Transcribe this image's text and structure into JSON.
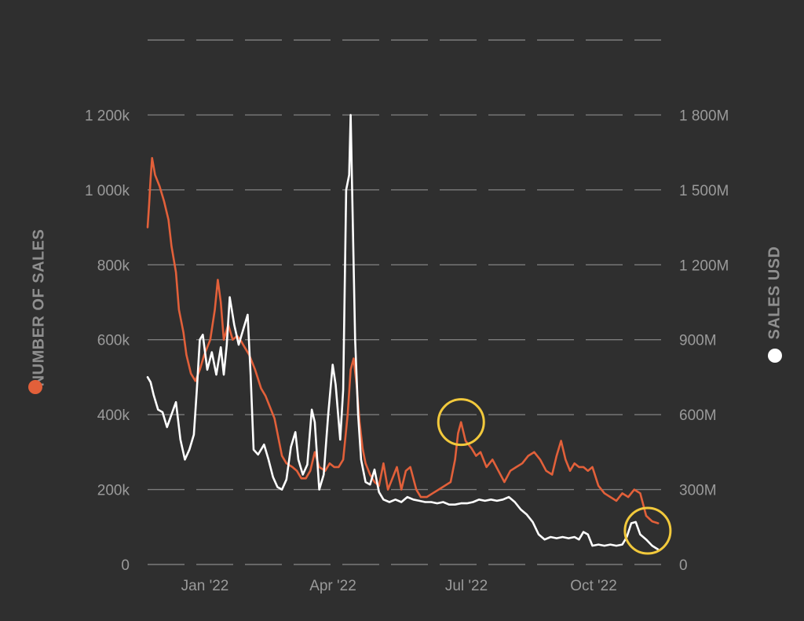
{
  "chart_data": {
    "type": "line",
    "title": "",
    "xlabel": "",
    "x_ticks": [
      "Jan '22",
      "Apr '22",
      "Jul '22",
      "Oct '22"
    ],
    "y_left": {
      "label": "NUMBER OF SALES",
      "ticks": [
        "0",
        "200k",
        "400k",
        "600k",
        "800k",
        "1 000k",
        "1 200k"
      ],
      "lim": [
        0,
        1400000
      ]
    },
    "y_right": {
      "label": "SALES USD",
      "ticks": [
        "0",
        "300M",
        "600M",
        "900M",
        "1 200M",
        "1 500M",
        "1 800M"
      ],
      "lim": [
        0,
        2100000000
      ]
    },
    "x_range": [
      "2021-12-03",
      "2022-11-12"
    ],
    "grid": true,
    "colors": {
      "number_of_sales": "#e2603a",
      "sales_usd": "#ffffff",
      "highlight": "#f2c93c",
      "background": "#2f2f2f"
    },
    "series": [
      {
        "name": "NUMBER OF SALES",
        "axis": "left",
        "points": [
          [
            "2021-12-03",
            900000
          ],
          [
            "2021-12-04",
            960000
          ],
          [
            "2021-12-05",
            1030000
          ],
          [
            "2021-12-06",
            1085000
          ],
          [
            "2021-12-08",
            1040000
          ],
          [
            "2021-12-11",
            1010000
          ],
          [
            "2021-12-14",
            970000
          ],
          [
            "2021-12-17",
            920000
          ],
          [
            "2021-12-19",
            850000
          ],
          [
            "2021-12-22",
            780000
          ],
          [
            "2021-12-24",
            680000
          ],
          [
            "2021-12-27",
            620000
          ],
          [
            "2021-12-29",
            560000
          ],
          [
            "2022-01-01",
            510000
          ],
          [
            "2022-01-04",
            490000
          ],
          [
            "2022-01-07",
            520000
          ],
          [
            "2022-01-10",
            560000
          ],
          [
            "2022-01-12",
            580000
          ],
          [
            "2022-01-14",
            600000
          ],
          [
            "2022-01-17",
            680000
          ],
          [
            "2022-01-19",
            760000
          ],
          [
            "2022-01-21",
            700000
          ],
          [
            "2022-01-23",
            600000
          ],
          [
            "2022-01-26",
            640000
          ],
          [
            "2022-01-29",
            600000
          ],
          [
            "2022-02-01",
            610000
          ],
          [
            "2022-02-03",
            600000
          ],
          [
            "2022-02-06",
            580000
          ],
          [
            "2022-02-09",
            560000
          ],
          [
            "2022-02-13",
            520000
          ],
          [
            "2022-02-17",
            470000
          ],
          [
            "2022-02-20",
            450000
          ],
          [
            "2022-02-23",
            420000
          ],
          [
            "2022-02-26",
            390000
          ],
          [
            "2022-03-01",
            330000
          ],
          [
            "2022-03-03",
            290000
          ],
          [
            "2022-03-06",
            270000
          ],
          [
            "2022-03-10",
            260000
          ],
          [
            "2022-03-13",
            250000
          ],
          [
            "2022-03-16",
            230000
          ],
          [
            "2022-03-19",
            230000
          ],
          [
            "2022-03-22",
            250000
          ],
          [
            "2022-03-25",
            300000
          ],
          [
            "2022-03-28",
            260000
          ],
          [
            "2022-04-01",
            250000
          ],
          [
            "2022-04-04",
            270000
          ],
          [
            "2022-04-07",
            260000
          ],
          [
            "2022-04-10",
            260000
          ],
          [
            "2022-04-13",
            280000
          ],
          [
            "2022-04-16",
            400000
          ],
          [
            "2022-04-18",
            520000
          ],
          [
            "2022-04-20",
            550000
          ],
          [
            "2022-04-22",
            480000
          ],
          [
            "2022-04-24",
            380000
          ],
          [
            "2022-04-26",
            310000
          ],
          [
            "2022-04-28",
            270000
          ],
          [
            "2022-05-01",
            240000
          ],
          [
            "2022-05-04",
            220000
          ],
          [
            "2022-05-07",
            210000
          ],
          [
            "2022-05-10",
            270000
          ],
          [
            "2022-05-13",
            200000
          ],
          [
            "2022-05-16",
            230000
          ],
          [
            "2022-05-19",
            260000
          ],
          [
            "2022-05-22",
            200000
          ],
          [
            "2022-05-25",
            250000
          ],
          [
            "2022-05-28",
            260000
          ],
          [
            "2022-06-01",
            200000
          ],
          [
            "2022-06-04",
            180000
          ],
          [
            "2022-06-08",
            180000
          ],
          [
            "2022-06-12",
            190000
          ],
          [
            "2022-06-16",
            200000
          ],
          [
            "2022-06-20",
            210000
          ],
          [
            "2022-06-24",
            220000
          ],
          [
            "2022-06-27",
            280000
          ],
          [
            "2022-06-29",
            350000
          ],
          [
            "2022-07-01",
            380000
          ],
          [
            "2022-07-04",
            330000
          ],
          [
            "2022-07-08",
            310000
          ],
          [
            "2022-07-11",
            290000
          ],
          [
            "2022-07-14",
            300000
          ],
          [
            "2022-07-18",
            260000
          ],
          [
            "2022-07-22",
            280000
          ],
          [
            "2022-07-26",
            250000
          ],
          [
            "2022-07-30",
            220000
          ],
          [
            "2022-08-03",
            250000
          ],
          [
            "2022-08-07",
            260000
          ],
          [
            "2022-08-11",
            270000
          ],
          [
            "2022-08-15",
            290000
          ],
          [
            "2022-08-19",
            300000
          ],
          [
            "2022-08-23",
            280000
          ],
          [
            "2022-08-27",
            250000
          ],
          [
            "2022-08-31",
            240000
          ],
          [
            "2022-09-03",
            290000
          ],
          [
            "2022-09-06",
            330000
          ],
          [
            "2022-09-09",
            280000
          ],
          [
            "2022-09-12",
            250000
          ],
          [
            "2022-09-15",
            270000
          ],
          [
            "2022-09-18",
            260000
          ],
          [
            "2022-09-21",
            260000
          ],
          [
            "2022-09-24",
            250000
          ],
          [
            "2022-09-27",
            260000
          ],
          [
            "2022-10-01",
            210000
          ],
          [
            "2022-10-05",
            190000
          ],
          [
            "2022-10-09",
            180000
          ],
          [
            "2022-10-13",
            170000
          ],
          [
            "2022-10-17",
            190000
          ],
          [
            "2022-10-21",
            180000
          ],
          [
            "2022-10-25",
            200000
          ],
          [
            "2022-10-29",
            190000
          ],
          [
            "2022-11-02",
            130000
          ],
          [
            "2022-11-06",
            115000
          ],
          [
            "2022-11-10",
            110000
          ]
        ]
      },
      {
        "name": "SALES USD",
        "axis": "right",
        "points": [
          [
            "2021-12-03",
            750000000
          ],
          [
            "2021-12-05",
            730000000
          ],
          [
            "2021-12-07",
            680000000
          ],
          [
            "2021-12-10",
            620000000
          ],
          [
            "2021-12-13",
            610000000
          ],
          [
            "2021-12-16",
            550000000
          ],
          [
            "2021-12-19",
            600000000
          ],
          [
            "2021-12-22",
            650000000
          ],
          [
            "2021-12-25",
            500000000
          ],
          [
            "2021-12-28",
            420000000
          ],
          [
            "2021-12-31",
            460000000
          ],
          [
            "2022-01-03",
            520000000
          ],
          [
            "2022-01-05",
            700000000
          ],
          [
            "2022-01-07",
            900000000
          ],
          [
            "2022-01-09",
            920000000
          ],
          [
            "2022-01-12",
            780000000
          ],
          [
            "2022-01-15",
            850000000
          ],
          [
            "2022-01-18",
            760000000
          ],
          [
            "2022-01-21",
            870000000
          ],
          [
            "2022-01-23",
            760000000
          ],
          [
            "2022-01-25",
            880000000
          ],
          [
            "2022-01-27",
            1070000000
          ],
          [
            "2022-01-30",
            960000000
          ],
          [
            "2022-02-02",
            880000000
          ],
          [
            "2022-02-05",
            940000000
          ],
          [
            "2022-02-08",
            1000000000
          ],
          [
            "2022-02-10",
            760000000
          ],
          [
            "2022-02-12",
            460000000
          ],
          [
            "2022-02-15",
            440000000
          ],
          [
            "2022-02-19",
            480000000
          ],
          [
            "2022-02-22",
            420000000
          ],
          [
            "2022-02-25",
            350000000
          ],
          [
            "2022-02-28",
            310000000
          ],
          [
            "2022-03-03",
            300000000
          ],
          [
            "2022-03-06",
            340000000
          ],
          [
            "2022-03-09",
            470000000
          ],
          [
            "2022-03-12",
            530000000
          ],
          [
            "2022-03-14",
            420000000
          ],
          [
            "2022-03-17",
            360000000
          ],
          [
            "2022-03-20",
            400000000
          ],
          [
            "2022-03-23",
            620000000
          ],
          [
            "2022-03-25",
            570000000
          ],
          [
            "2022-03-28",
            300000000
          ],
          [
            "2022-03-31",
            360000000
          ],
          [
            "2022-04-03",
            600000000
          ],
          [
            "2022-04-06",
            800000000
          ],
          [
            "2022-04-08",
            720000000
          ],
          [
            "2022-04-11",
            500000000
          ],
          [
            "2022-04-13",
            700000000
          ],
          [
            "2022-04-15",
            1500000000
          ],
          [
            "2022-04-17",
            1560000000
          ],
          [
            "2022-04-18",
            1800000000
          ],
          [
            "2022-04-19",
            1500000000
          ],
          [
            "2022-04-21",
            900000000
          ],
          [
            "2022-04-23",
            600000000
          ],
          [
            "2022-04-25",
            420000000
          ],
          [
            "2022-04-28",
            330000000
          ],
          [
            "2022-05-01",
            320000000
          ],
          [
            "2022-05-04",
            380000000
          ],
          [
            "2022-05-07",
            290000000
          ],
          [
            "2022-05-10",
            260000000
          ],
          [
            "2022-05-14",
            250000000
          ],
          [
            "2022-05-18",
            260000000
          ],
          [
            "2022-05-22",
            250000000
          ],
          [
            "2022-05-26",
            270000000
          ],
          [
            "2022-05-30",
            260000000
          ],
          [
            "2022-06-03",
            255000000
          ],
          [
            "2022-06-07",
            250000000
          ],
          [
            "2022-06-11",
            250000000
          ],
          [
            "2022-06-15",
            245000000
          ],
          [
            "2022-06-19",
            250000000
          ],
          [
            "2022-06-23",
            240000000
          ],
          [
            "2022-06-27",
            240000000
          ],
          [
            "2022-07-01",
            245000000
          ],
          [
            "2022-07-05",
            245000000
          ],
          [
            "2022-07-09",
            250000000
          ],
          [
            "2022-07-13",
            260000000
          ],
          [
            "2022-07-17",
            255000000
          ],
          [
            "2022-07-21",
            260000000
          ],
          [
            "2022-07-25",
            255000000
          ],
          [
            "2022-07-29",
            260000000
          ],
          [
            "2022-08-02",
            270000000
          ],
          [
            "2022-08-06",
            250000000
          ],
          [
            "2022-08-10",
            220000000
          ],
          [
            "2022-08-14",
            200000000
          ],
          [
            "2022-08-18",
            170000000
          ],
          [
            "2022-08-22",
            120000000
          ],
          [
            "2022-08-26",
            100000000
          ],
          [
            "2022-08-30",
            110000000
          ],
          [
            "2022-09-03",
            105000000
          ],
          [
            "2022-09-07",
            110000000
          ],
          [
            "2022-09-11",
            105000000
          ],
          [
            "2022-09-15",
            110000000
          ],
          [
            "2022-09-18",
            100000000
          ],
          [
            "2022-09-21",
            130000000
          ],
          [
            "2022-09-24",
            120000000
          ],
          [
            "2022-09-27",
            75000000
          ],
          [
            "2022-10-01",
            80000000
          ],
          [
            "2022-10-05",
            75000000
          ],
          [
            "2022-10-09",
            80000000
          ],
          [
            "2022-10-13",
            75000000
          ],
          [
            "2022-10-17",
            80000000
          ],
          [
            "2022-10-20",
            110000000
          ],
          [
            "2022-10-23",
            165000000
          ],
          [
            "2022-10-26",
            170000000
          ],
          [
            "2022-10-29",
            120000000
          ],
          [
            "2022-11-02",
            100000000
          ],
          [
            "2022-11-06",
            75000000
          ],
          [
            "2022-11-10",
            60000000
          ]
        ]
      }
    ],
    "annotations": [
      {
        "type": "circle",
        "target": "NUMBER OF SALES",
        "at": [
          "2022-07-01",
          380000
        ]
      },
      {
        "type": "circle",
        "target": "SALES USD",
        "at": [
          "2022-11-03",
          135000000
        ]
      }
    ]
  }
}
